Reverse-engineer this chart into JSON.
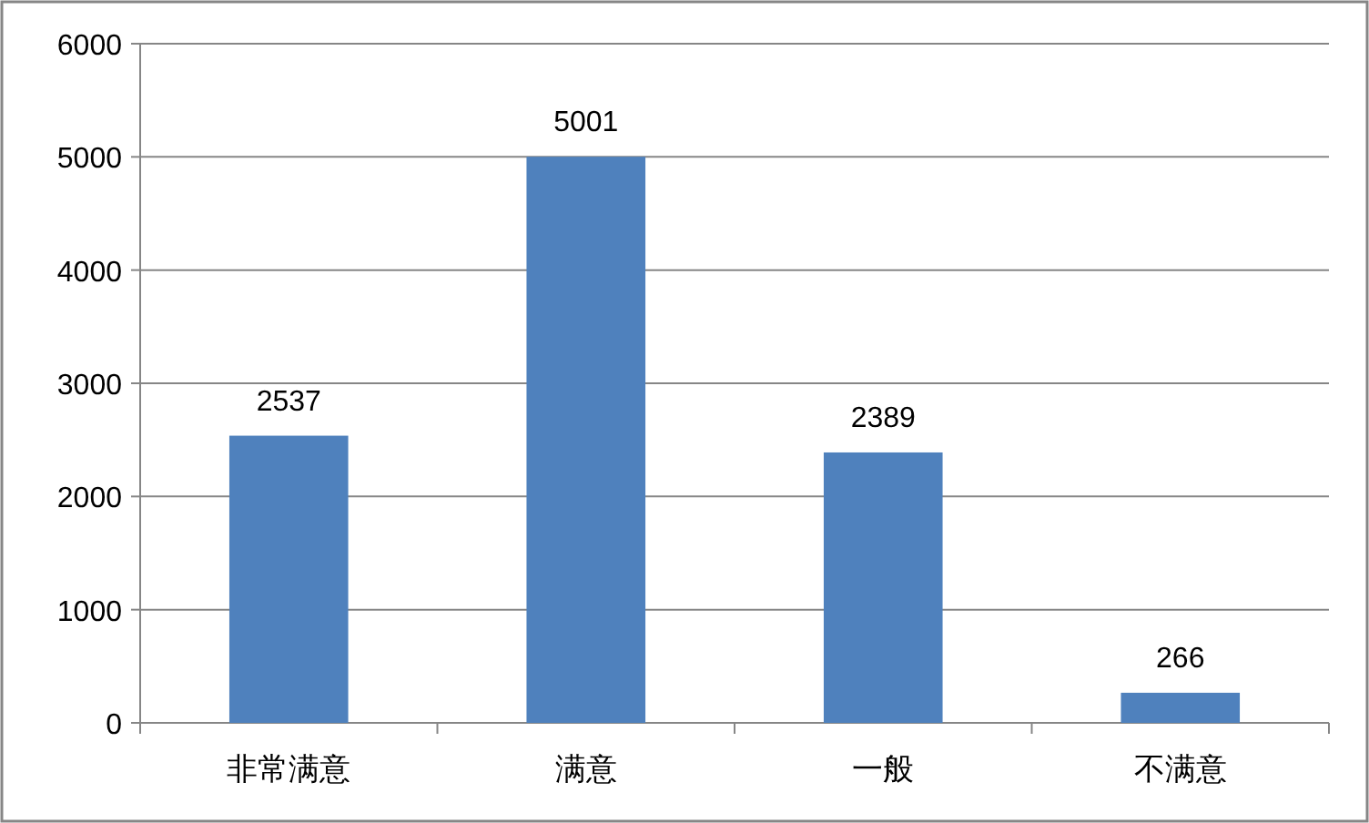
{
  "chart_data": {
    "type": "bar",
    "categories": [
      "非常满意",
      "满意",
      "一般",
      "不满意"
    ],
    "values": [
      2537,
      5001,
      2389,
      266
    ],
    "color": "#4f81bd",
    "ylim": [
      0,
      6000
    ],
    "yticks": [
      0,
      1000,
      2000,
      3000,
      4000,
      5000,
      6000
    ],
    "grid": "y",
    "data_labels": true
  }
}
